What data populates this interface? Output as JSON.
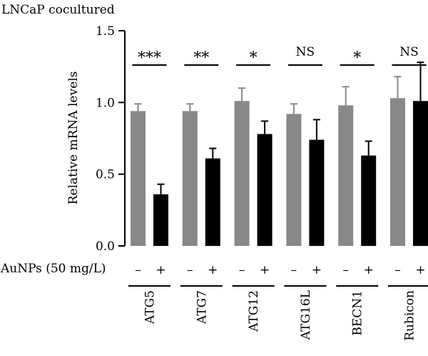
{
  "chart_data": {
    "type": "bar",
    "title": "LNCaP cocultured",
    "ylabel": "Relative mRNA levels",
    "xlabel": "",
    "ylim": [
      0,
      1.5
    ],
    "yticks": [
      "0.0",
      "0.5",
      "1.0",
      "1.5"
    ],
    "treatment_label": "AuNPs (50 mg/L)",
    "treatment_levels": [
      "–",
      "+"
    ],
    "categories": [
      "ATG5",
      "ATG7",
      "ATG12",
      "ATG16L",
      "BECN1",
      "Rubicon"
    ],
    "series": [
      {
        "values": [
          0.94,
          0.94,
          1.01,
          0.92,
          0.98,
          1.03
        ],
        "errors": [
          0.05,
          0.05,
          0.09,
          0.07,
          0.13,
          0.15
        ],
        "color": "#888888"
      },
      {
        "values": [
          0.36,
          0.61,
          0.78,
          0.74,
          0.63,
          1.01
        ],
        "errors": [
          0.07,
          0.07,
          0.09,
          0.14,
          0.1,
          0.27
        ],
        "color": "#000000"
      }
    ],
    "significance": [
      "***",
      "**",
      "*",
      "NS",
      "*",
      "NS"
    ],
    "grid": false,
    "legend": "none"
  }
}
